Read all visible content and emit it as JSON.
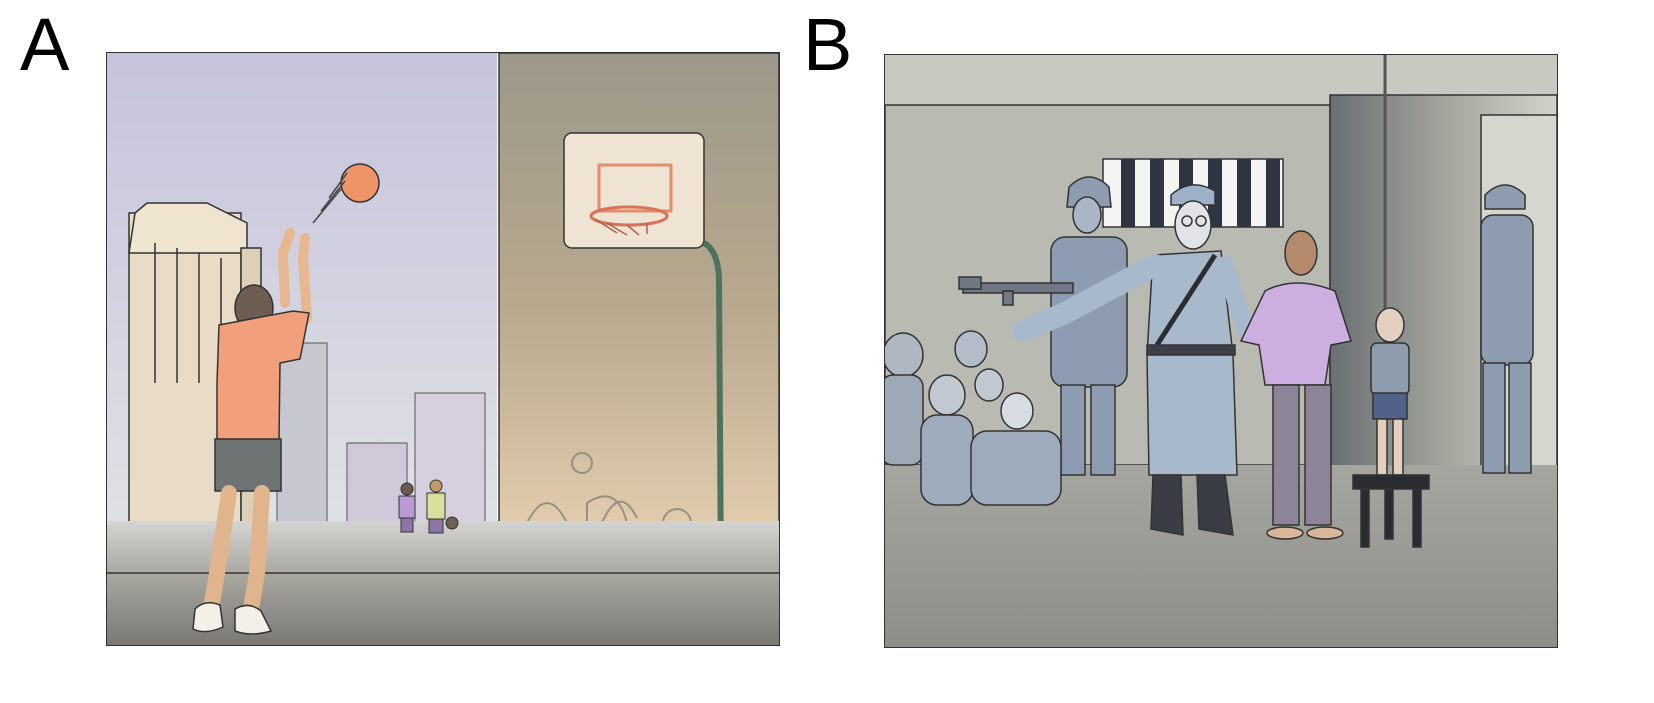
{
  "panels": [
    {
      "letter": "A"
    },
    {
      "letter": "B"
    }
  ],
  "colors": {
    "sky_top": "#c8c6de",
    "sky_bottom": "#dfe2e8",
    "wall_a": "#b8a88c",
    "shirt_orange": "#f3a27b",
    "ball": "#e98f62",
    "uniform_blue": "#9aa8bc",
    "room_gray": "#b3b5ad",
    "shirt_purple": "#c7a6d8"
  }
}
